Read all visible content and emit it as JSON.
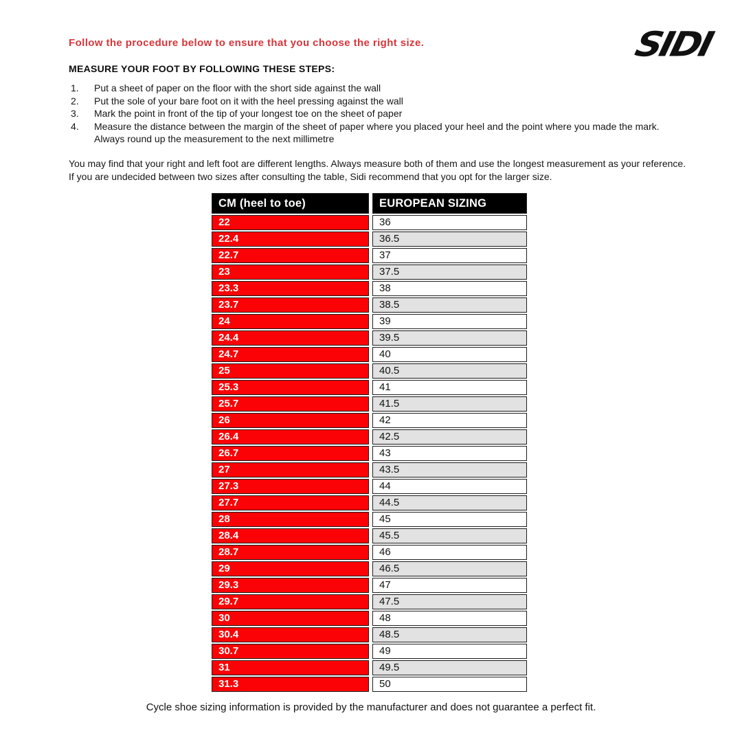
{
  "page": {
    "logo_text": "SIDI",
    "intro_heading": "Follow the procedure below to ensure that you choose the right size.",
    "steps_heading": "MEASURE YOUR FOOT BY FOLLOWING THESE STEPS:",
    "steps": [
      "Put a sheet of paper on the floor with the short side against the wall",
      "Put the sole of your bare foot on it with the heel pressing against the wall",
      "Mark the point in front of the tip of your longest toe on the sheet of paper",
      "Measure the distance between the margin of the sheet of paper where you placed your heel and the point where you made the mark. Always round up the measurement to the next millimetre"
    ],
    "note1": "You may find that your right and left foot are different lengths. Always measure both of them and use the longest measurement as your reference.",
    "note2": "If you are undecided between two sizes after consulting the table, Sidi recommend that you opt for the larger size.",
    "footer": "Cycle shoe sizing information is provided by the manufacturer and does not guarantee a perfect fit."
  },
  "table": {
    "headers": [
      "CM (heel to toe)",
      "EUROPEAN SIZING"
    ],
    "rows": [
      {
        "cm": "22",
        "eu": "36"
      },
      {
        "cm": "22.4",
        "eu": "36.5"
      },
      {
        "cm": "22.7",
        "eu": "37"
      },
      {
        "cm": "23",
        "eu": "37.5"
      },
      {
        "cm": "23.3",
        "eu": "38"
      },
      {
        "cm": "23.7",
        "eu": "38.5"
      },
      {
        "cm": "24",
        "eu": "39"
      },
      {
        "cm": "24.4",
        "eu": "39.5"
      },
      {
        "cm": "24.7",
        "eu": "40"
      },
      {
        "cm": "25",
        "eu": "40.5"
      },
      {
        "cm": "25.3",
        "eu": "41"
      },
      {
        "cm": "25.7",
        "eu": "41.5"
      },
      {
        "cm": "26",
        "eu": "42"
      },
      {
        "cm": "26.4",
        "eu": "42.5"
      },
      {
        "cm": "26.7",
        "eu": "43"
      },
      {
        "cm": "27",
        "eu": "43.5"
      },
      {
        "cm": "27.3",
        "eu": "44"
      },
      {
        "cm": "27.7",
        "eu": "44.5"
      },
      {
        "cm": "28",
        "eu": "45"
      },
      {
        "cm": "28.4",
        "eu": "45.5"
      },
      {
        "cm": "28.7",
        "eu": "46"
      },
      {
        "cm": "29",
        "eu": "46.5"
      },
      {
        "cm": "29.3",
        "eu": "47"
      },
      {
        "cm": "29.7",
        "eu": "47.5"
      },
      {
        "cm": "30",
        "eu": "48"
      },
      {
        "cm": "30.4",
        "eu": "48.5"
      },
      {
        "cm": "30.7",
        "eu": "49"
      },
      {
        "cm": "31",
        "eu": "49.5"
      },
      {
        "cm": "31.3",
        "eu": "50"
      }
    ]
  },
  "colors": {
    "accent_red_text": "#d8353a",
    "table_row_red": "#fb0306",
    "table_header_bg": "#000000",
    "table_alt_row": "#e2e2e2",
    "table_border": "#1c1c1c"
  }
}
